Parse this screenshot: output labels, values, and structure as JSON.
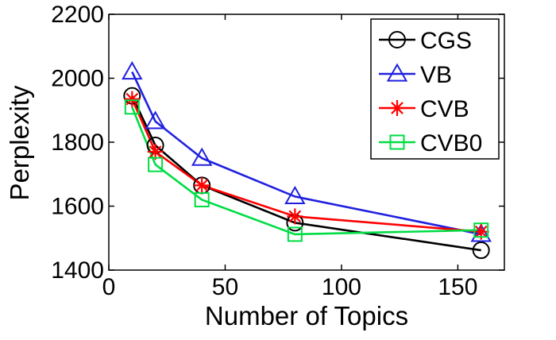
{
  "chart_data": {
    "type": "line",
    "title": "",
    "xlabel": "Number of Topics",
    "ylabel": "Perplexity",
    "xlim": [
      0,
      170
    ],
    "ylim": [
      1400,
      2200
    ],
    "xticks": [
      0,
      50,
      100,
      150
    ],
    "yticks": [
      1400,
      1600,
      1800,
      2000,
      2200
    ],
    "xtick_labels": [
      "0",
      "50",
      "100",
      "150"
    ],
    "ytick_labels": [
      "1400",
      "1600",
      "1800",
      "2000",
      "2200"
    ],
    "grid": false,
    "legend_position": "top-right",
    "x": [
      10,
      20,
      40,
      80,
      160
    ],
    "series": [
      {
        "name": "CGS",
        "values": [
          1945,
          1790,
          1665,
          1548,
          1462
        ],
        "color": "#000000",
        "marker": "circle"
      },
      {
        "name": "VB",
        "values": [
          2020,
          1865,
          1750,
          1630,
          1512
        ],
        "color": "#2020e0",
        "marker": "triangle"
      },
      {
        "name": "CVB",
        "values": [
          1935,
          1770,
          1665,
          1568,
          1520
        ],
        "color": "#ff0000",
        "marker": "star"
      },
      {
        "name": "CVB0",
        "values": [
          1910,
          1730,
          1620,
          1512,
          1525
        ],
        "color": "#00dd44",
        "marker": "square"
      }
    ]
  }
}
